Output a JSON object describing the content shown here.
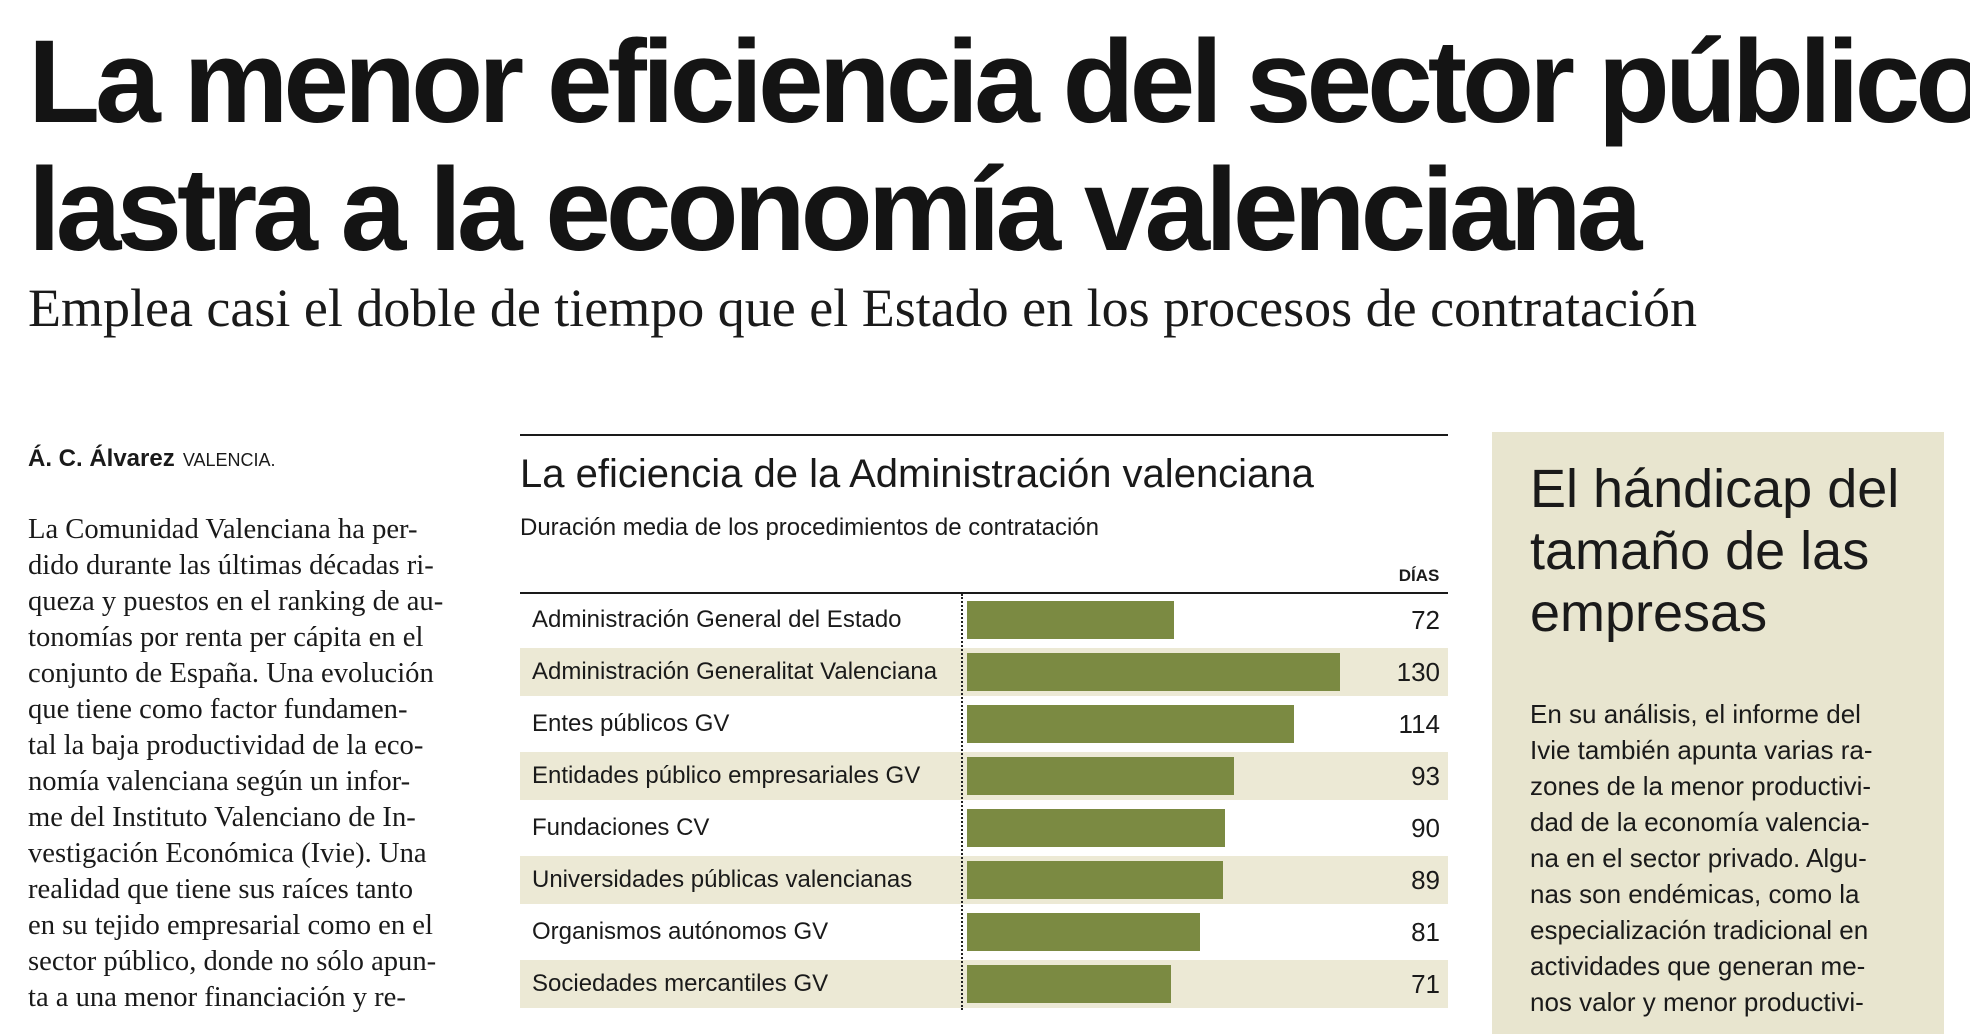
{
  "article": {
    "headline_lines": [
      "La menor eficiencia del sector público",
      "lastra a la economía valenciana"
    ],
    "subhead": "Emplea casi el doble de tiempo que el Estado en los procesos de contratación",
    "byline": {
      "author": "Á. C. Álvarez",
      "city": "VALENCIA."
    },
    "body_lines": [
      "La Comunidad Valenciana ha per-",
      "dido durante las últimas décadas ri-",
      "queza y puestos en el ranking de au-",
      "tonomías por renta per cápita en el",
      "conjunto de España. Una evolución",
      "que tiene como factor fundamen-",
      "tal la baja productividad de la eco-",
      "nomía valenciana según un infor-",
      "me del  Instituto Valenciano de In-",
      "vestigación Económica (Ivie). Una",
      "realidad que tiene sus raíces tanto",
      "en su tejido empresarial como en el",
      "sector público, donde no sólo apun-",
      "ta a una menor financiación y re-"
    ]
  },
  "chart_data": {
    "type": "bar",
    "orientation": "horizontal",
    "title": "La eficiencia de la Administración valenciana",
    "subtitle": "Duración media de los procedimientos de contratación",
    "value_label": "DÍAS",
    "xlim": [
      0,
      140
    ],
    "categories": [
      "Administración General del Estado",
      "Administración Generalitat Valenciana",
      "Entes públicos GV",
      "Entidades público empresariales GV",
      "Fundaciones CV",
      "Universidades públicas valencianas",
      "Organismos autónomos GV",
      "Sociedades mercantiles GV"
    ],
    "values": [
      72,
      130,
      114,
      93,
      90,
      89,
      81,
      71
    ],
    "bar_color": "#7b8a42",
    "alt_row_color": "#ece9d5"
  },
  "sidebar": {
    "title_lines": [
      "El hándicap del",
      "tamaño de las",
      "empresas"
    ],
    "body_lines": [
      "En su análisis, el informe del",
      "Ivie también apunta varias ra-",
      "zones de la menor productivi-",
      "dad de la economía valencia-",
      "na en el sector privado. Algu-",
      "nas son endémicas, como la",
      "especialización tradicional en",
      "actividades que generan me-",
      "nos valor y menor productivi-"
    ]
  }
}
